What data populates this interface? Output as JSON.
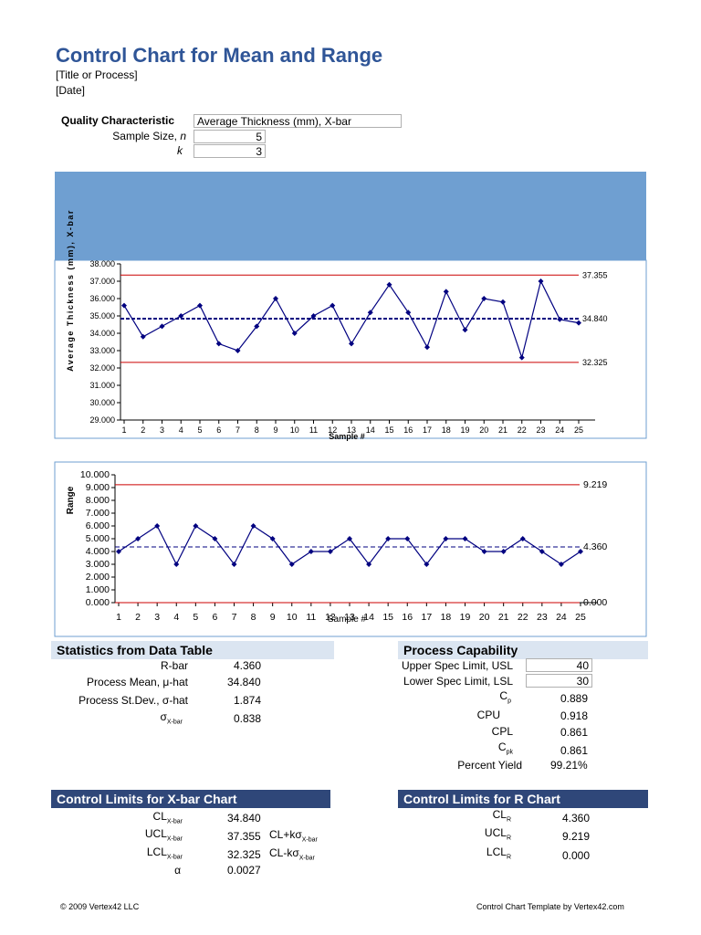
{
  "header": {
    "title": "Control Chart for Mean and Range",
    "process": "[Title or Process]",
    "date": "[Date]"
  },
  "inputs": {
    "quality_label": "Quality Characteristic",
    "quality_value": "Average Thickness (mm), X-bar",
    "sample_size_label": "Sample Size, ",
    "sample_size_var": "n",
    "sample_size_value": "5",
    "k_label": "k",
    "k_value": "3"
  },
  "colors": {
    "accent": "#2f5597",
    "band": "#6f9fd1",
    "limit": "#cc0000",
    "series": "#000080",
    "dark_header": "#2f4779"
  },
  "chart_data": [
    {
      "type": "line",
      "ylabel": "Average Thickness (mm), X-bar",
      "xlabel": "Sample #",
      "ylim": [
        29,
        38
      ],
      "y_ticks": [
        "29.000",
        "30.000",
        "31.000",
        "32.000",
        "33.000",
        "34.000",
        "35.000",
        "36.000",
        "37.000",
        "38.000"
      ],
      "x": [
        1,
        2,
        3,
        4,
        5,
        6,
        7,
        8,
        9,
        10,
        11,
        12,
        13,
        14,
        15,
        16,
        17,
        18,
        19,
        20,
        21,
        22,
        23,
        24,
        25
      ],
      "values": [
        35.6,
        33.8,
        34.4,
        35.0,
        35.6,
        33.4,
        33.0,
        34.4,
        36.0,
        34.0,
        35.0,
        35.6,
        33.4,
        35.2,
        36.8,
        35.2,
        33.2,
        36.4,
        34.2,
        36.0,
        35.8,
        32.6,
        37.0,
        34.8,
        34.6
      ],
      "ucl": 37.355,
      "cl": 34.84,
      "lcl": 32.325,
      "ucl_label": "37.355",
      "cl_label": "34.840",
      "lcl_label": "32.325",
      "grid": false
    },
    {
      "type": "line",
      "ylabel": "Range",
      "xlabel": "Sample #",
      "ylim": [
        0,
        10
      ],
      "y_ticks": [
        "0.000",
        "1.000",
        "2.000",
        "3.000",
        "4.000",
        "5.000",
        "6.000",
        "7.000",
        "8.000",
        "9.000",
        "10.000"
      ],
      "x": [
        1,
        2,
        3,
        4,
        5,
        6,
        7,
        8,
        9,
        10,
        11,
        12,
        13,
        14,
        15,
        16,
        17,
        18,
        19,
        20,
        21,
        22,
        23,
        24,
        25
      ],
      "values": [
        4,
        5,
        6,
        3,
        6,
        5,
        3,
        6,
        5,
        3,
        4,
        4,
        5,
        3,
        5,
        5,
        3,
        5,
        5,
        4,
        4,
        5,
        4,
        3,
        4
      ],
      "ucl": 9.219,
      "cl": 4.36,
      "lcl": 0.0,
      "ucl_label": "9.219",
      "cl_label": "4.360",
      "lcl_label": "0.000",
      "grid": false
    }
  ],
  "stats": {
    "heading": "Statistics from Data Table",
    "rbar_label": "R-bar",
    "rbar": "4.360",
    "mean_label": "Process Mean, μ-hat",
    "mean": "34.840",
    "sd_label": "Process St.Dev., σ-hat",
    "sd": "1.874",
    "sigma_sym": "σ",
    "sigma_sub": "X-bar",
    "sigma": "0.838"
  },
  "capability": {
    "heading": "Process Capability",
    "usl_label": "Upper Spec Limit, USL",
    "usl": "40",
    "lsl_label": "Lower Spec Limit, LSL",
    "lsl": "30",
    "cp_sym": "C",
    "cp_sub": "p",
    "cp": "0.889",
    "cpu_label": "CPU",
    "cpu": "0.918",
    "cpl_label": "CPL",
    "cpl": "0.861",
    "cpk_sym": "C",
    "cpk_sub": "pk",
    "cpk": "0.861",
    "yield_label": "Percent Yield",
    "yield": "99.21%"
  },
  "xbar_limits": {
    "heading": "Control Limits for X-bar Chart",
    "cl_sym": "CL",
    "cl_sub": "X-bar",
    "cl": "34.840",
    "ucl_sym": "UCL",
    "ucl_sub": "X-bar",
    "ucl": "37.355",
    "ucl_formula_a": "CL+kσ",
    "ucl_formula_sub": "X-bar",
    "lcl_sym": "LCL",
    "lcl_sub": "X-bar",
    "lcl": "32.325",
    "lcl_formula_a": "CL-kσ",
    "lcl_formula_sub": "X-bar",
    "alpha_sym": "α",
    "alpha": "0.0027"
  },
  "r_limits": {
    "heading": "Control Limits for R Chart",
    "cl_sym": "CL",
    "cl_sub": "R",
    "cl": "4.360",
    "ucl_sym": "UCL",
    "ucl_sub": "R",
    "ucl": "9.219",
    "lcl_sym": "LCL",
    "lcl_sub": "R",
    "lcl": "0.000"
  },
  "footer": {
    "left": "© 2009 Vertex42 LLC",
    "right": "Control Chart Template by Vertex42.com"
  }
}
